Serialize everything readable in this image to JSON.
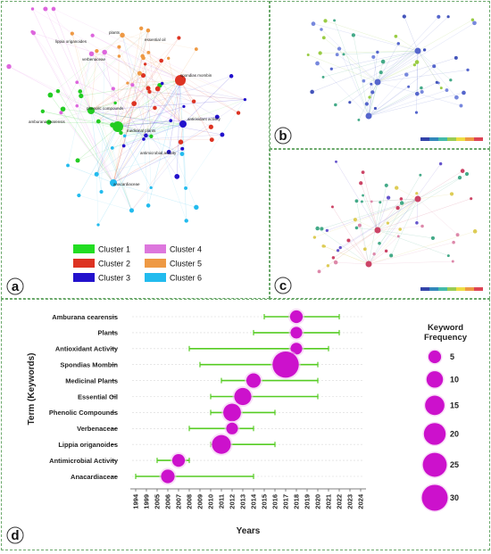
{
  "panels": {
    "a": "a",
    "b": "b",
    "c": "c",
    "d": "d"
  },
  "network_a": {
    "labels": [
      "spondias mombin",
      "antioxidant activity",
      "anacardiaceae",
      "phenolic compounds",
      "essential oil",
      "lippia origanoides",
      "verbenaceae",
      "plants",
      "medicinal plants",
      "amburana cearensis",
      "antimicrobial activity"
    ],
    "cluster_colors": [
      "#22cc22",
      "#dd3322",
      "#2211cc",
      "#dd66dd",
      "#ee9944",
      "#22bbee"
    ]
  },
  "clusters": [
    {
      "label": "Cluster 1",
      "color": "#22dd22"
    },
    {
      "label": "Cluster 2",
      "color": "#dd3322"
    },
    {
      "label": "Cluster 3",
      "color": "#2211cc"
    },
    {
      "label": "Cluster 4",
      "color": "#dd77dd"
    },
    {
      "label": "Cluster 5",
      "color": "#ee9944"
    },
    {
      "label": "Cluster 6",
      "color": "#22bbee"
    }
  ],
  "chart_data": {
    "type": "scatter",
    "subtype": "trend-topics",
    "xlabel": "Years",
    "ylabel": "Term (Keywords)",
    "x_ticks": [
      "1994",
      "1999",
      "2005",
      "2006",
      "2007",
      "2008",
      "2009",
      "2010",
      "2011",
      "2012",
      "2013",
      "2014",
      "2015",
      "2016",
      "2017",
      "2018",
      "2019",
      "2020",
      "2021",
      "2022",
      "2023",
      "2024"
    ],
    "terms": [
      {
        "term": "Amburana cearensis",
        "start": "2015",
        "peak": "2018",
        "end": "2022",
        "frequency": 5
      },
      {
        "term": "Plants",
        "start": "2014",
        "peak": "2018",
        "end": "2022",
        "frequency": 4
      },
      {
        "term": "Antioxidant Activity",
        "start": "2008",
        "peak": "2018",
        "end": "2021",
        "frequency": 4
      },
      {
        "term": "Spondias Mombin",
        "start": "2009",
        "peak": "2017",
        "end": "2020",
        "frequency": 31
      },
      {
        "term": "Medicinal Plants",
        "start": "2011",
        "peak": "2014",
        "end": "2020",
        "frequency": 7
      },
      {
        "term": "Essential Oil",
        "start": "2010",
        "peak": "2013",
        "end": "2020",
        "frequency": 11
      },
      {
        "term": "Phenolic Compounds",
        "start": "2010",
        "peak": "2012",
        "end": "2016",
        "frequency": 12
      },
      {
        "term": "Verbenaceae",
        "start": "2008",
        "peak": "2012",
        "end": "2014",
        "frequency": 4
      },
      {
        "term": "Lippia origanoides",
        "start": "2010",
        "peak": "2011",
        "end": "2016",
        "frequency": 14
      },
      {
        "term": "Antimicrobial Activity",
        "start": "2005",
        "peak": "2007",
        "end": "2008",
        "frequency": 5
      },
      {
        "term": "Anacardiaceae",
        "start": "1994",
        "peak": "2006",
        "end": "2014",
        "frequency": 6
      }
    ],
    "legend": {
      "title": "Keyword Frequency",
      "sizes": [
        5,
        10,
        15,
        20,
        25,
        30
      ]
    },
    "colors": {
      "bubble": "#cc11cc",
      "line": "#55cc22",
      "halo": "#f4c8f4"
    }
  }
}
